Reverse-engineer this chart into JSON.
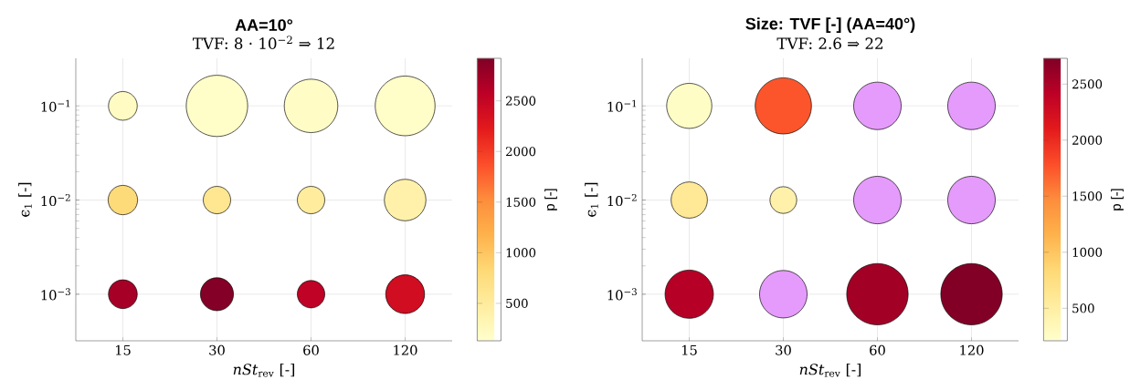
{
  "chart_data": [
    {
      "type": "bubble",
      "title": "AA=10°",
      "subtitle": "TVF: 8 · 10$^{−2}$ ⇒ 12",
      "xlabel": "*nSt*$_{rev}$ [-]",
      "ylabel": "ϵ$_{1}$ [-]",
      "clabel": "p [-]",
      "categories": [
        "15",
        "30",
        "60",
        "120"
      ],
      "log": "y",
      "ylim": [
        0.00032,
        0.32
      ],
      "yticks": [
        {
          "value": 0.001,
          "label": "10$^{−3}$"
        },
        {
          "value": 0.01,
          "label": "10$^{−2}$"
        },
        {
          "value": 0.1,
          "label": "10$^{−1}$"
        }
      ],
      "grid": true,
      "clim": [
        130,
        2920
      ],
      "cticks": [
        500,
        1000,
        1500,
        2000,
        2500
      ],
      "series": [
        {
          "values": [
            0.1,
            0.1,
            0.1,
            0.1
          ],
          "sizes": [
            0.22,
            1,
            0.76,
            0.95
          ],
          "cvalues": [
            200,
            150,
            180,
            160
          ],
          "colors": [
            null,
            null,
            null,
            null
          ]
        },
        {
          "values": [
            0.01,
            0.01,
            0.01,
            0.01
          ],
          "sizes": [
            0.23,
            0.2,
            0.2,
            0.46
          ],
          "cvalues": [
            800,
            600,
            500,
            400
          ],
          "colors": [
            null,
            null,
            null,
            null
          ]
        },
        {
          "values": [
            0.001,
            0.001,
            0.001,
            0.001
          ],
          "sizes": [
            0.22,
            0.29,
            0.2,
            0.4
          ],
          "cvalues": [
            2700,
            2900,
            2550,
            2400
          ],
          "colors": [
            null,
            null,
            null,
            null
          ]
        }
      ]
    },
    {
      "type": "bubble",
      "title": "Size: TVF [-] (AA=40°)",
      "subtitle": "TVF: 2.6 ⇒ 22",
      "xlabel": "*nSt*$_{rev}$ [-]",
      "ylabel": "ϵ$_{1}$ [-]",
      "clabel": "p [-]",
      "categories": [
        "15",
        "30",
        "60",
        "120"
      ],
      "log": "y",
      "ylim": [
        0.00032,
        0.32
      ],
      "yticks": [
        {
          "value": 0.001,
          "label": "10$^{−3}$"
        },
        {
          "value": 0.01,
          "label": "10$^{−2}$"
        },
        {
          "value": 0.1,
          "label": "10$^{−1}$"
        }
      ],
      "grid": true,
      "clim": [
        210,
        2730
      ],
      "cticks": [
        500,
        1000,
        1500,
        2000,
        2500
      ],
      "series": [
        {
          "values": [
            0.1,
            0.1,
            0.1,
            0.1
          ],
          "sizes": [
            0.54,
            0.84,
            0.6,
            0.6
          ],
          "cvalues": [
            250,
            1750,
            null,
            null
          ],
          "colors": [
            null,
            null,
            "#e59bfb",
            "#e59bfb"
          ]
        },
        {
          "values": [
            0.01,
            0.01,
            0.01,
            0.01
          ],
          "sizes": [
            0.35,
            0.19,
            0.6,
            0.6
          ],
          "cvalues": [
            600,
            450,
            null,
            null
          ],
          "colors": [
            null,
            null,
            "#e59bfb",
            "#e59bfb"
          ]
        },
        {
          "values": [
            0.001,
            0.001,
            0.001,
            0.001
          ],
          "sizes": [
            0.62,
            0.6,
            1,
            1
          ],
          "cvalues": [
            2450,
            null,
            2550,
            2720
          ],
          "colors": [
            null,
            "#e59bfb",
            null,
            null
          ]
        }
      ]
    }
  ]
}
